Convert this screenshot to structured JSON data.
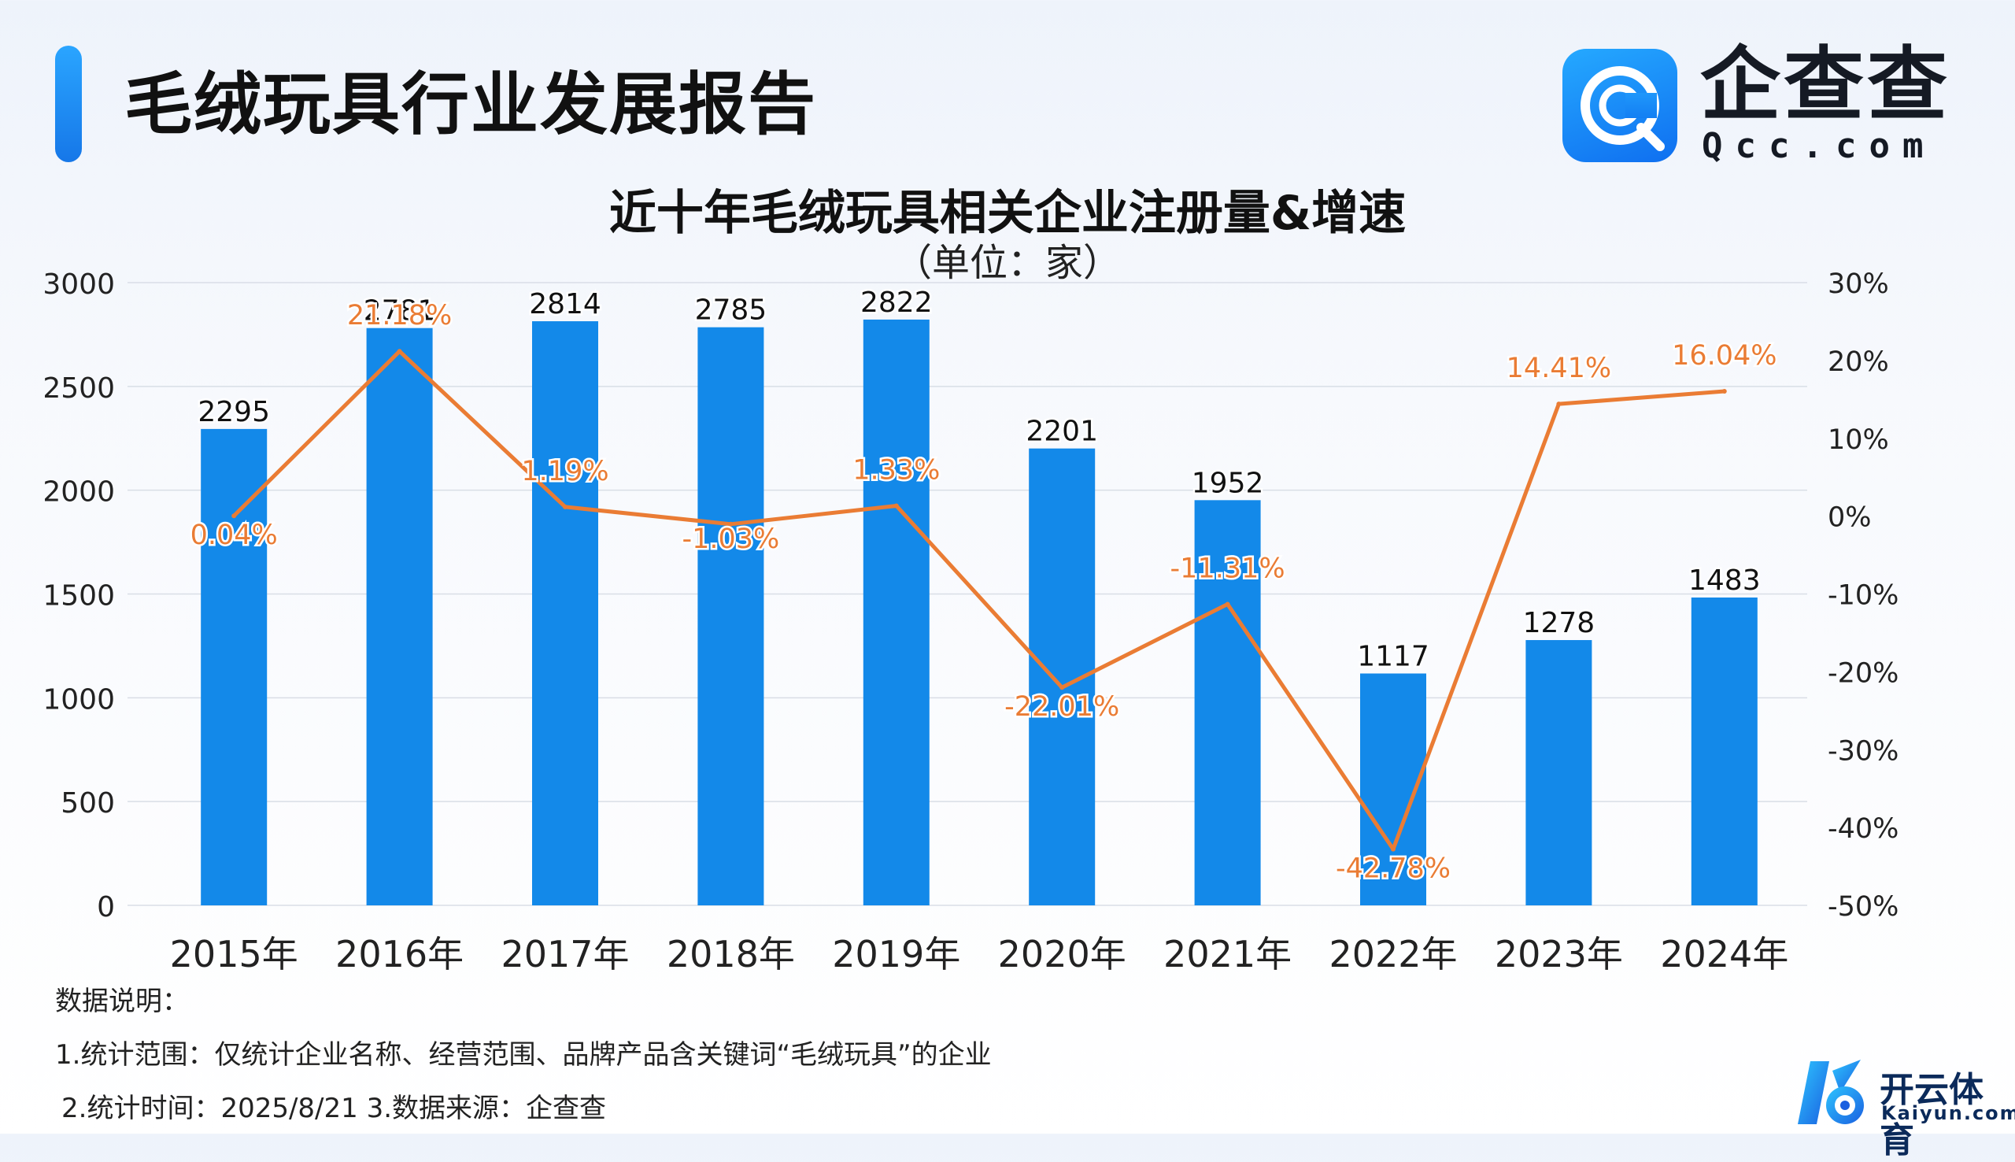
{
  "header": {
    "title": "毛绒玩具行业发展报告",
    "logo_name": "企查查",
    "logo_domain": "Qcc.com"
  },
  "colors": {
    "bar": "#1389e9",
    "line": "#ea7c34",
    "accent": "#1677e8"
  },
  "chart_data": {
    "type": "bar",
    "title": "近十年毛绒玩具相关企业注册量&增速",
    "subtitle": "（单位：家）",
    "categories": [
      "2015年",
      "2016年",
      "2017年",
      "2018年",
      "2019年",
      "2020年",
      "2021年",
      "2022年",
      "2023年",
      "2024年"
    ],
    "series": [
      {
        "type": "bar",
        "axis": "left",
        "values": [
          2295,
          2781,
          2814,
          2785,
          2822,
          2201,
          1952,
          1117,
          1278,
          1483
        ],
        "labels": [
          "2295",
          "2781",
          "2814",
          "2785",
          "2822",
          "2201",
          "1952",
          "1117",
          "1278",
          "1483"
        ]
      },
      {
        "type": "line",
        "axis": "right",
        "values": [
          0.04,
          21.18,
          1.19,
          -1.03,
          1.33,
          -22.01,
          -11.31,
          -42.78,
          14.41,
          16.04
        ],
        "labels": [
          "0.04%",
          "21.18%",
          "1.19%",
          "-1.03%",
          "1.33%",
          "-22.01%",
          "-11.31%",
          "-42.78%",
          "14.41%",
          "16.04%"
        ]
      }
    ],
    "left_axis": {
      "min": 0,
      "max": 3000,
      "ticks": [
        "0",
        "500",
        "1000",
        "1500",
        "2000",
        "2500",
        "3000"
      ]
    },
    "right_axis": {
      "min": -50,
      "max": 30,
      "ticks": [
        "-50%",
        "-40%",
        "-30%",
        "-20%",
        "-10%",
        "0%",
        "10%",
        "20%",
        "30%"
      ]
    },
    "grid": true,
    "legend": "none"
  },
  "notes": {
    "title": "数据说明：",
    "line1": "1.统计范围：仅统计企业名称、经营范围、品牌产品含关键词“毛绒玩具”的企业",
    "line2": "2.统计时间：2025/8/21 3.数据来源：企查查"
  },
  "watermark": {
    "name": "开云体育",
    "domain": "Kaiyun.com"
  }
}
